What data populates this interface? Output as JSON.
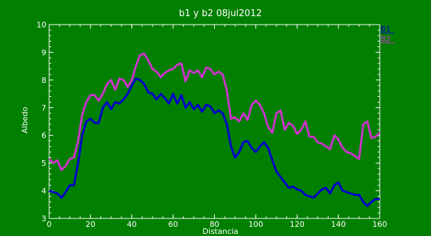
{
  "chart_data": {
    "type": "line",
    "title": "b1 y b2 08jul2012",
    "xlabel": "Distancia",
    "ylabel": "Albedo",
    "xlim": [
      0,
      160
    ],
    "ylim": [
      3,
      10
    ],
    "xticks": [
      0,
      20,
      40,
      60,
      80,
      100,
      120,
      140,
      160
    ],
    "yticks": [
      3,
      4,
      5,
      6,
      7,
      8,
      9,
      10
    ],
    "grid": false,
    "legend_position": "top-right",
    "series": [
      {
        "name": "B1",
        "color": "#0000cc",
        "x": [
          0,
          2,
          4,
          6,
          8,
          10,
          12,
          14,
          16,
          18,
          20,
          22,
          24,
          26,
          28,
          30,
          32,
          34,
          36,
          38,
          40,
          42,
          44,
          46,
          48,
          50,
          52,
          54,
          56,
          58,
          60,
          62,
          64,
          66,
          68,
          70,
          72,
          74,
          76,
          78,
          80,
          82,
          84,
          86,
          88,
          90,
          92,
          94,
          96,
          98,
          100,
          102,
          104,
          106,
          108,
          110,
          112,
          114,
          116,
          118,
          120,
          122,
          124,
          126,
          128,
          130,
          132,
          134,
          136,
          138,
          140,
          142,
          144,
          146,
          148,
          150,
          152,
          154,
          156,
          158,
          160
        ],
        "y": [
          4.0,
          3.95,
          3.9,
          3.75,
          3.95,
          4.2,
          4.2,
          5.0,
          6.0,
          6.5,
          6.6,
          6.45,
          6.45,
          7.0,
          7.2,
          6.95,
          7.2,
          7.15,
          7.3,
          7.5,
          7.8,
          8.05,
          8.0,
          7.85,
          7.55,
          7.5,
          7.3,
          7.5,
          7.35,
          7.15,
          7.5,
          7.15,
          7.45,
          7.0,
          7.2,
          6.95,
          7.1,
          6.85,
          7.1,
          7.05,
          6.8,
          6.9,
          6.8,
          6.4,
          5.6,
          5.2,
          5.4,
          5.75,
          5.8,
          5.55,
          5.4,
          5.6,
          5.75,
          5.55,
          5.1,
          4.7,
          4.5,
          4.3,
          4.1,
          4.15,
          4.05,
          4.0,
          3.85,
          3.8,
          3.75,
          3.9,
          4.05,
          4.1,
          3.9,
          4.2,
          4.3,
          4.0,
          3.95,
          3.9,
          3.85,
          3.85,
          3.6,
          3.45,
          3.6,
          3.7,
          3.7
        ]
      },
      {
        "name": "B2",
        "color": "#cc33cc",
        "x": [
          0,
          2,
          4,
          6,
          8,
          10,
          12,
          14,
          16,
          18,
          20,
          22,
          24,
          26,
          28,
          30,
          32,
          34,
          36,
          38,
          40,
          42,
          44,
          46,
          48,
          50,
          52,
          54,
          56,
          58,
          60,
          62,
          64,
          66,
          68,
          70,
          72,
          74,
          76,
          78,
          80,
          82,
          84,
          86,
          88,
          90,
          92,
          94,
          96,
          98,
          100,
          102,
          104,
          106,
          108,
          110,
          112,
          114,
          116,
          118,
          120,
          122,
          124,
          126,
          128,
          130,
          132,
          134,
          136,
          138,
          140,
          142,
          144,
          146,
          148,
          150,
          152,
          154,
          156,
          158,
          160
        ],
        "y": [
          5.15,
          5.0,
          5.1,
          4.75,
          4.9,
          5.15,
          5.2,
          5.8,
          6.75,
          7.2,
          7.45,
          7.45,
          7.25,
          7.5,
          7.85,
          8.0,
          7.65,
          8.05,
          8.0,
          7.75,
          8.0,
          8.5,
          8.9,
          8.95,
          8.7,
          8.4,
          8.3,
          8.1,
          8.25,
          8.35,
          8.4,
          8.55,
          8.6,
          7.95,
          8.35,
          8.25,
          8.35,
          8.1,
          8.45,
          8.4,
          8.2,
          8.3,
          8.2,
          7.6,
          6.6,
          6.65,
          6.5,
          6.8,
          6.55,
          7.1,
          7.25,
          7.1,
          6.8,
          6.3,
          6.1,
          6.8,
          6.9,
          6.2,
          6.45,
          6.35,
          6.05,
          6.2,
          6.5,
          5.95,
          5.95,
          5.75,
          5.7,
          5.6,
          5.5,
          6.0,
          5.85,
          5.55,
          5.4,
          5.35,
          5.25,
          5.15,
          6.4,
          6.5,
          5.9,
          5.95,
          6.1
        ]
      }
    ]
  }
}
